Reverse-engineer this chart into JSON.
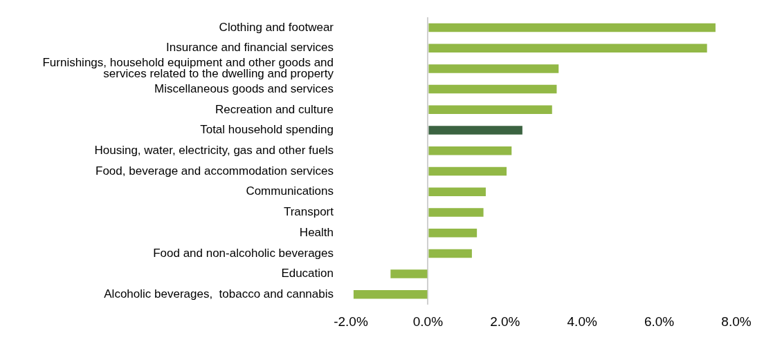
{
  "chart_data": {
    "type": "bar",
    "orientation": "horizontal",
    "categories": [
      "Clothing and footwear",
      "Insurance and financial services",
      "Furnishings, household equipment and other goods and services related to the dwelling and property",
      "Miscellaneous goods and services",
      "Recreation and culture",
      "Total household spending",
      "Housing, water, electricity, gas and other fuels",
      "Food, beverage and accommodation services",
      "Communications",
      "Transport",
      "Health",
      "Food and non-alcoholic beverages",
      "Education",
      "Alcoholic beverages,  tobacco and cannabis"
    ],
    "values": [
      7.46,
      7.24,
      3.39,
      3.34,
      3.22,
      2.45,
      2.17,
      2.04,
      1.5,
      1.44,
      1.27,
      1.14,
      -0.97,
      -1.93
    ],
    "colors": [
      "#92b846",
      "#92b846",
      "#92b846",
      "#92b846",
      "#92b846",
      "#3b6341",
      "#92b846",
      "#92b846",
      "#92b846",
      "#92b846",
      "#92b846",
      "#92b846",
      "#92b846",
      "#92b846"
    ],
    "xlim": [
      -2,
      8
    ],
    "xticks": [
      {
        "value": -2,
        "label": "-2.0%"
      },
      {
        "value": 0,
        "label": "0.0%"
      },
      {
        "value": 2,
        "label": "2.0%"
      },
      {
        "value": 4,
        "label": "4.0%"
      },
      {
        "value": 6,
        "label": "6.0%"
      },
      {
        "value": 8,
        "label": "8.0%"
      }
    ]
  }
}
